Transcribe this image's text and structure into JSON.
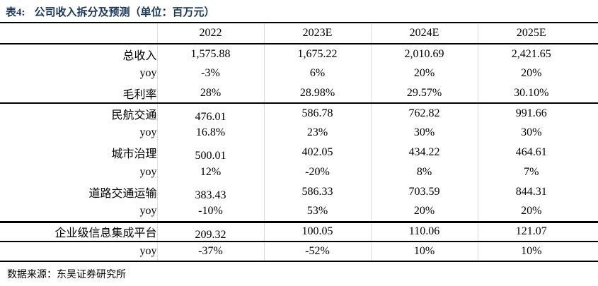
{
  "title": {
    "prefix": "表4:",
    "text": "公司收入拆分及预测（单位：百万元）"
  },
  "colors": {
    "title": "#17365d",
    "rule": "#000000",
    "grid": "#dcdcdc"
  },
  "table": {
    "columns": [
      "",
      "2022",
      "2023E",
      "2024E",
      "2025E"
    ],
    "rows": [
      {
        "label": "总收入",
        "values": [
          "1,575.88",
          "1,675.22",
          "2,010.69",
          "2,421.65"
        ],
        "type": "normal",
        "rule_below": ""
      },
      {
        "label": "yoy",
        "values": [
          "-3%",
          "6%",
          "20%",
          "20%"
        ],
        "type": "normal",
        "rule_below": ""
      },
      {
        "label": "毛利率",
        "values": [
          "28%",
          "28.98%",
          "29.57%",
          "30.10%"
        ],
        "type": "normal",
        "rule_below": "medium"
      },
      {
        "label": "民航交通",
        "values": [
          "476.01",
          "586.78",
          "762.82",
          "991.66"
        ],
        "type": "section",
        "rule_below": ""
      },
      {
        "label": "yoy",
        "values": [
          "16.8%",
          "23%",
          "30%",
          "30%"
        ],
        "type": "normal",
        "rule_below": ""
      },
      {
        "label": "城市治理",
        "values": [
          "500.01",
          "402.05",
          "434.22",
          "464.61"
        ],
        "type": "section",
        "rule_below": ""
      },
      {
        "label": "yoy",
        "values": [
          "12%",
          "-20%",
          "8%",
          "7%"
        ],
        "type": "normal",
        "rule_below": ""
      },
      {
        "label": "道路交通运输",
        "values": [
          "383.43",
          "586.33",
          "703.59",
          "844.31"
        ],
        "type": "section",
        "rule_below": ""
      },
      {
        "label": "yoy",
        "values": [
          "-10%",
          "53%",
          "20%",
          "20%"
        ],
        "type": "normal",
        "rule_below": "thick"
      },
      {
        "label": "企业级信息集成平台",
        "values": [
          "209.32",
          "100.05",
          "110.06",
          "121.07"
        ],
        "type": "section",
        "rule_below": "medium"
      },
      {
        "label": "yoy",
        "values": [
          "-37%",
          "-52%",
          "10%",
          "10%"
        ],
        "type": "normal",
        "rule_below": "medium"
      }
    ]
  },
  "source": "数据来源：东吴证券研究所"
}
